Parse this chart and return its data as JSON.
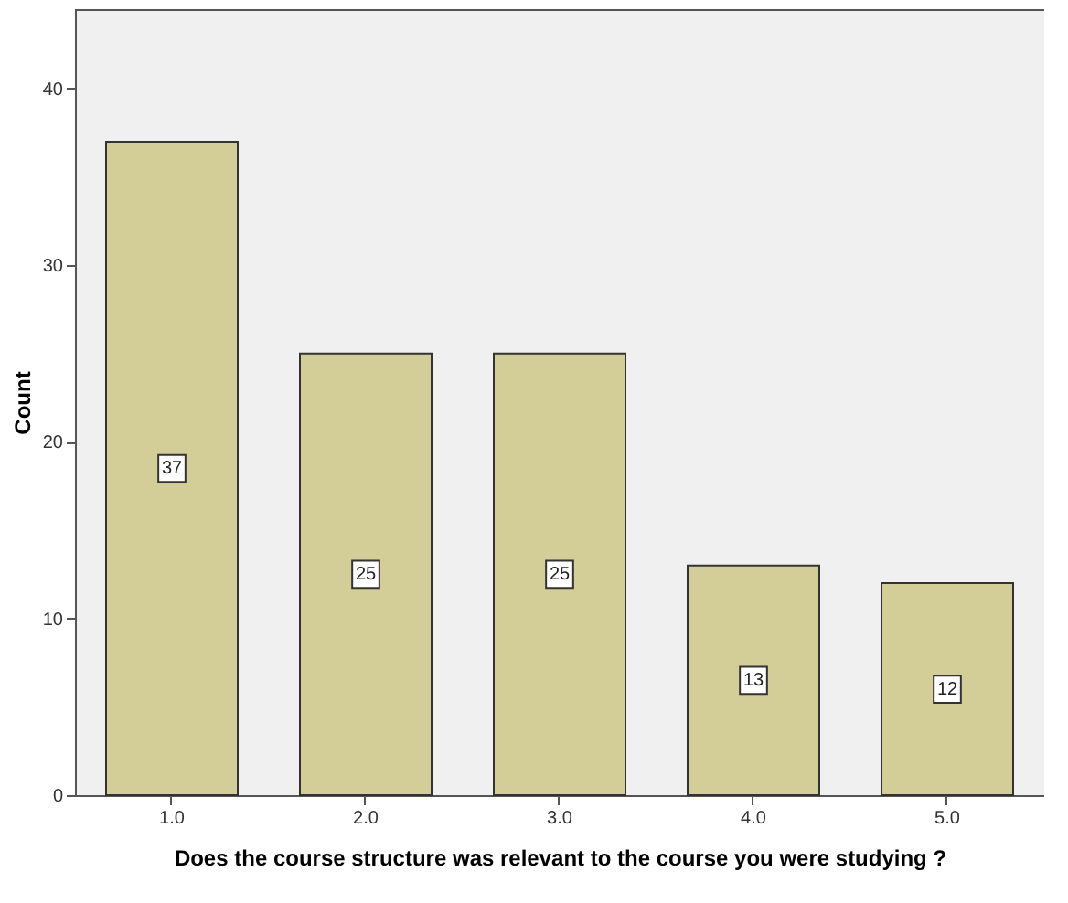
{
  "chart_data": {
    "type": "bar",
    "categories": [
      "1.0",
      "2.0",
      "3.0",
      "4.0",
      "5.0"
    ],
    "values": [
      37,
      25,
      25,
      13,
      12
    ],
    "color": "#d3ce97",
    "xlabel": "Does the course structure was relevant to the course you were studying ?",
    "ylabel": "Count",
    "ylim": [
      0,
      44.5
    ],
    "yticks": [
      0,
      10,
      20,
      30,
      40
    ],
    "data_labels": true,
    "grid": false
  }
}
